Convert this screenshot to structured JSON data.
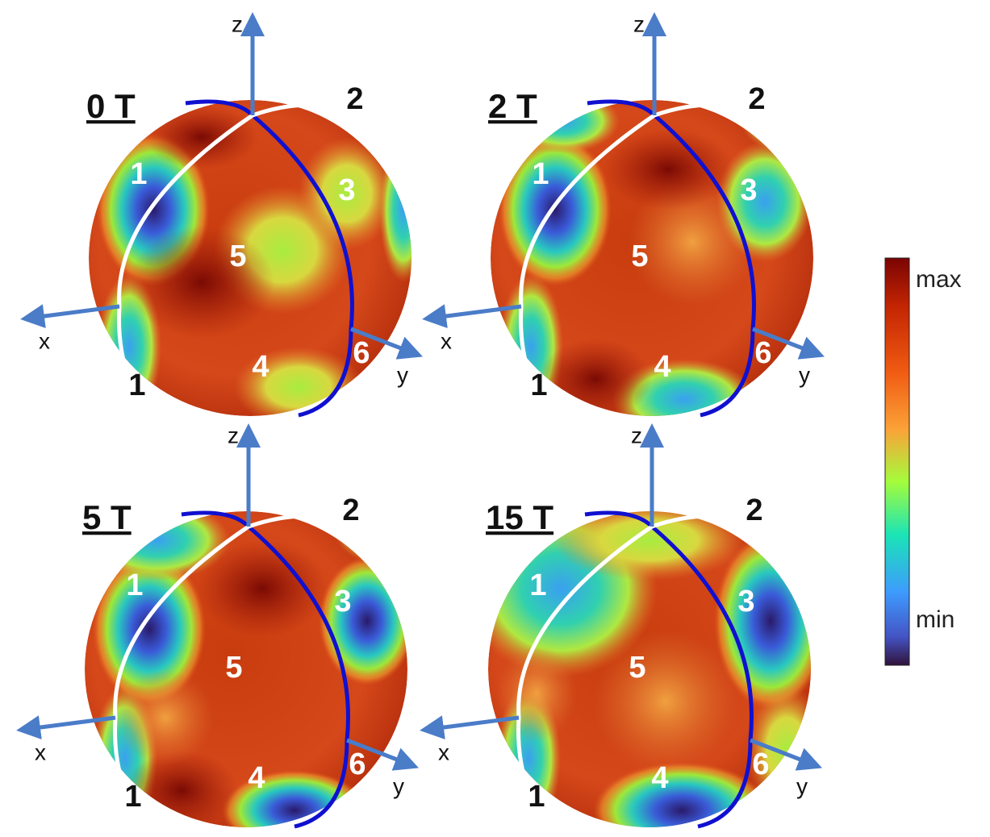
{
  "panels": [
    {
      "title": "0 T",
      "axes": {
        "x": "x",
        "y": "y",
        "z": "z"
      },
      "labels": [
        "1",
        "1",
        "2",
        "3",
        "4",
        "5",
        "6"
      ]
    },
    {
      "title": "2 T",
      "axes": {
        "x": "x",
        "y": "y",
        "z": "z"
      },
      "labels": [
        "1",
        "1",
        "2",
        "3",
        "4",
        "5",
        "6"
      ]
    },
    {
      "title": "5 T",
      "axes": {
        "x": "x",
        "y": "y",
        "z": "z"
      },
      "labels": [
        "1",
        "1",
        "2",
        "3",
        "4",
        "5",
        "6"
      ]
    },
    {
      "title": "15 T",
      "axes": {
        "x": "x",
        "y": "y",
        "z": "z"
      },
      "labels": [
        "1",
        "1",
        "2",
        "3",
        "4",
        "5",
        "6"
      ]
    }
  ],
  "colorbar": {
    "max": "max",
    "min": "min"
  }
}
